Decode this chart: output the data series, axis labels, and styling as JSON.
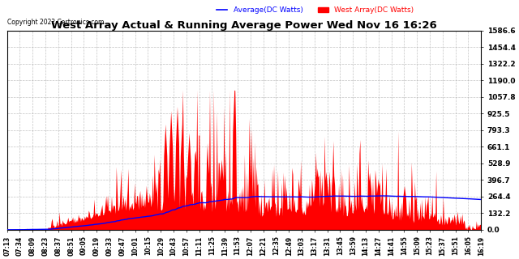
{
  "title": "West Array Actual & Running Average Power Wed Nov 16 16:26",
  "copyright": "Copyright 2022 Cartronics.com",
  "legend_avg": "Average(DC Watts)",
  "legend_west": "West Array(DC Watts)",
  "ylabel_values": [
    0.0,
    132.2,
    264.4,
    396.7,
    528.9,
    661.1,
    793.3,
    925.5,
    1057.8,
    1190.0,
    1322.2,
    1454.4,
    1586.6
  ],
  "ymax": 1586.6,
  "ymin": 0.0,
  "x_labels": [
    "07:13",
    "07:34",
    "08:09",
    "08:23",
    "08:37",
    "08:51",
    "09:05",
    "09:19",
    "09:33",
    "09:47",
    "10:01",
    "10:15",
    "10:29",
    "10:43",
    "10:57",
    "11:11",
    "11:25",
    "11:39",
    "11:53",
    "12:07",
    "12:21",
    "12:35",
    "12:49",
    "13:03",
    "13:17",
    "13:31",
    "13:45",
    "13:59",
    "14:13",
    "14:27",
    "14:41",
    "14:55",
    "15:09",
    "15:23",
    "15:37",
    "15:51",
    "16:05",
    "16:19"
  ],
  "fill_color": "#ff0000",
  "avg_line_color": "#0000ff",
  "bg_color": "#ffffff",
  "grid_color": "#aaaaaa",
  "title_color": "#000000",
  "copyright_color": "#000000",
  "legend_avg_color": "#0000ff",
  "legend_west_color": "#ff0000"
}
